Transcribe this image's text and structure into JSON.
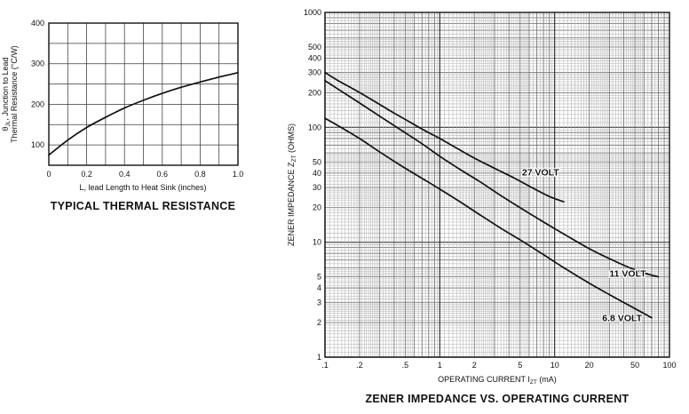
{
  "page": {
    "background": "#ffffff"
  },
  "figure1": {
    "title": "TYPICAL THERMAL RESISTANCE",
    "xlabel": "L, lead Length to Heat Sink (inches)",
    "ylabel_line1": {
      "pre": "θ",
      "sub": "JL",
      "post": ", Junction to Lead"
    },
    "ylabel_line2": "Thermal Resistance (°C/W)"
  },
  "figure2": {
    "title": "ZENER IMPEDANCE VS. OPERATING CURRENT",
    "xlabel": {
      "pre": "OPERATING CURRENT I",
      "sub": "ZT",
      "post": "  (mA)"
    },
    "ylabel": {
      "pre": "ZENER IMPEDANCE Z",
      "sub": "ZT",
      "post": " (OHMS)"
    }
  },
  "chart_data": [
    {
      "id": "thermal-resistance",
      "type": "line",
      "title": "TYPICAL THERMAL RESISTANCE",
      "xlabel": "L, lead Length to Heat Sink (inches)",
      "ylabel": "θJL, Junction to Lead Thermal Resistance (°C/W)",
      "xlim": [
        0,
        1.0
      ],
      "ylim": [
        50,
        400
      ],
      "x_tick_values": [
        0,
        0.2,
        0.4,
        0.6,
        0.8,
        1.0
      ],
      "x_tick_labels": [
        "0",
        "0.2",
        "0.4",
        "0.6",
        "0.8",
        "1.0"
      ],
      "x_minor_step": 0.1,
      "y_tick_values": [
        100,
        200,
        300,
        400
      ],
      "y_tick_labels": [
        "100",
        "200",
        "300",
        "400"
      ],
      "y_minor_step": 50,
      "grid": true,
      "legend": false,
      "series": [
        {
          "name": "thermal-resistance",
          "x": [
            0,
            0.1,
            0.2,
            0.3,
            0.4,
            0.5,
            0.6,
            0.7,
            0.8,
            0.9,
            1.0
          ],
          "y": [
            75,
            112,
            143,
            168,
            191,
            210,
            227,
            242,
            255,
            267,
            278
          ]
        }
      ]
    },
    {
      "id": "zener-impedance",
      "type": "line",
      "x_scale": "log",
      "y_scale": "log",
      "title": "ZENER IMPEDANCE VS. OPERATING CURRENT",
      "xlabel": "OPERATING CURRENT IZT (mA)",
      "ylabel": "ZENER IMPEDANCE ZZT (OHMS)",
      "xlim": [
        0.1,
        100
      ],
      "ylim": [
        1,
        1000
      ],
      "x_tick_values": [
        0.1,
        0.2,
        0.5,
        1,
        2,
        5,
        10,
        20,
        50,
        100
      ],
      "x_tick_labels": [
        ".1",
        ".2",
        ".5",
        "1",
        "2",
        "5",
        "10",
        "20",
        "50",
        "100"
      ],
      "y_tick_values": [
        1000,
        500,
        400,
        300,
        200,
        100,
        50,
        40,
        30,
        20,
        10,
        5,
        4,
        3,
        2,
        1
      ],
      "y_tick_labels": [
        "1000",
        "500",
        "400",
        "300",
        "200",
        "100",
        "50",
        "40",
        "30",
        "20",
        "10",
        "5",
        "4",
        "3",
        "2",
        "1"
      ],
      "grid": "log-fine",
      "legend": false,
      "series": [
        {
          "name": "27-volt",
          "label": "27 VOLT",
          "label_x": 5.2,
          "label_y": 38,
          "x": [
            0.1,
            0.13,
            0.17,
            0.22,
            0.3,
            0.4,
            0.55,
            0.75,
            1,
            1.4,
            2,
            3,
            4.5,
            6.5,
            9,
            12
          ],
          "y": [
            300,
            255,
            220,
            190,
            158,
            133,
            111,
            93,
            80,
            66,
            54,
            44,
            36,
            29.5,
            25,
            22.5
          ]
        },
        {
          "name": "11-volt",
          "label": "11 VOLT",
          "label_x": 30,
          "label_y": 5.0,
          "x": [
            0.1,
            0.14,
            0.2,
            0.3,
            0.45,
            0.7,
            1,
            1.5,
            2.2,
            3.5,
            5,
            8,
            12,
            20,
            30,
            45,
            60,
            80
          ],
          "y": [
            255,
            205,
            163,
            125,
            96,
            72,
            56,
            43,
            34,
            25,
            20,
            15,
            11.8,
            8.8,
            7.2,
            6.0,
            5.4,
            5.0
          ]
        },
        {
          "name": "6.8-volt",
          "label": "6.8 VOLT",
          "label_x": 26,
          "label_y": 2.05,
          "x": [
            0.1,
            0.14,
            0.2,
            0.3,
            0.45,
            0.7,
            1,
            1.5,
            2.2,
            3.5,
            5,
            8,
            12,
            20,
            30,
            45,
            60,
            70
          ],
          "y": [
            120,
            99,
            80,
            61,
            47,
            36,
            29,
            22.5,
            17.5,
            13,
            10.5,
            7.8,
            6.0,
            4.4,
            3.5,
            2.8,
            2.4,
            2.2
          ]
        }
      ]
    }
  ]
}
